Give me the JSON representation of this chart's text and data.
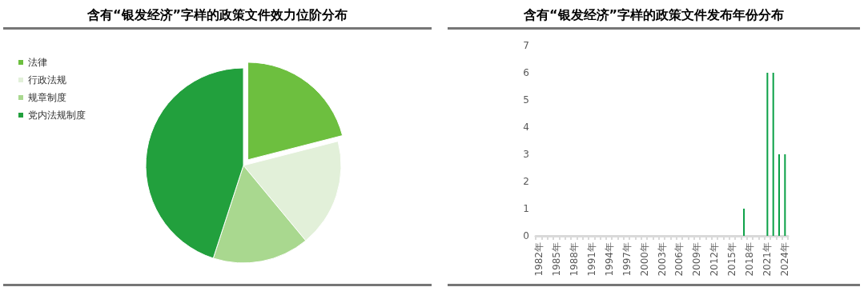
{
  "chart_data": [
    {
      "type": "pie",
      "title": "含有“银发经济”字样的政策文件效力位阶分布",
      "categories": [
        "法律",
        "行政法规",
        "规章制度",
        "党内法规制度"
      ],
      "values": [
        21,
        18,
        16,
        45
      ],
      "colors": [
        "#6dbf3f",
        "#e2f0d9",
        "#a9d88f",
        "#22a03d"
      ],
      "legend": "top left"
    },
    {
      "type": "bar",
      "title": "含有“银发经济”字样的政策文件发布年份分布",
      "categories": [
        "1982年",
        null,
        null,
        "1985年",
        null,
        null,
        "1988年",
        null,
        null,
        "1991年",
        null,
        null,
        "1994年",
        null,
        null,
        "1997年",
        null,
        null,
        "2000年",
        null,
        null,
        "2003年",
        null,
        null,
        "2006年",
        null,
        null,
        "2009年",
        null,
        null,
        "2012年",
        null,
        null,
        "2015年",
        null,
        null,
        "2018年",
        null,
        null,
        "2021年",
        null,
        null,
        "2024年"
      ],
      "values": [
        0,
        0,
        0,
        0,
        0,
        0,
        0,
        0,
        0,
        0,
        0,
        0,
        0,
        0,
        0,
        0,
        0,
        0,
        0,
        0,
        0,
        0,
        0,
        0,
        0,
        0,
        0,
        0,
        0,
        0,
        0,
        0,
        0,
        0,
        0,
        1,
        0,
        0,
        0,
        6,
        6,
        3,
        3
      ],
      "color": "#0aa046",
      "ylim": [
        0,
        7
      ],
      "yticks": [
        0,
        1,
        2,
        3,
        4,
        5,
        6,
        7
      ],
      "grid": false,
      "legend": false
    }
  ]
}
